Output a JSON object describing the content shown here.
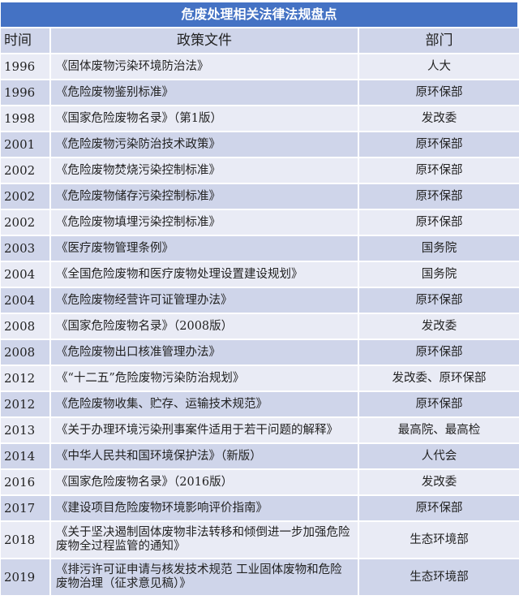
{
  "title": "危废处理相关法律法规盘点",
  "columns": [
    "时间",
    "政策文件",
    "部门"
  ],
  "rows": [
    {
      "year": "1996",
      "doc": "《固体废物污染环境防治法》",
      "dept": "人大"
    },
    {
      "year": "1996",
      "doc": "《危险废物鉴别标准》",
      "dept": "原环保部"
    },
    {
      "year": "1998",
      "doc": "《国家危险废物名录》（第1版）",
      "dept": "发改委"
    },
    {
      "year": "2001",
      "doc": "《危险废物污染防治技术政策》",
      "dept": "原环保部"
    },
    {
      "year": "2002",
      "doc": "《危险废物焚烧污染控制标准》",
      "dept": "原环保部"
    },
    {
      "year": "2002",
      "doc": "《危险废物储存污染控制标准》",
      "dept": "原环保部"
    },
    {
      "year": "2002",
      "doc": "《危险废物填埋污染控制标准》",
      "dept": "原环保部"
    },
    {
      "year": "2003",
      "doc": "《医疗废物管理条例》",
      "dept": "国务院"
    },
    {
      "year": "2004",
      "doc": "《全国危险废物和医疗废物处理设置建设规划》",
      "dept": "国务院"
    },
    {
      "year": "2004",
      "doc": "《危险废物经营许可证管理办法》",
      "dept": "原环保部"
    },
    {
      "year": "2008",
      "doc": "《国家危险废物名录》（2008版）",
      "dept": "发改委"
    },
    {
      "year": "2008",
      "doc": "《危险废物出口核准管理办法》",
      "dept": "原环保部"
    },
    {
      "year": "2012",
      "doc": "《“十二五”危险废物污染防治规划》",
      "dept": "发改委、原环保部"
    },
    {
      "year": "2012",
      "doc": "《危险废物收集、贮存、运输技术规范》",
      "dept": "原环保部"
    },
    {
      "year": "2013",
      "doc": "《关于办理环境污染刑事案件适用于若干问题的解释》",
      "dept": "最高院、最高检"
    },
    {
      "year": "2014",
      "doc": "《中华人民共和国环境保护法》（新版）",
      "dept": "人代会"
    },
    {
      "year": "2016",
      "doc": "《国家危险废物名录》（2016版）",
      "dept": "发改委"
    },
    {
      "year": "2017",
      "doc": "《建设项目危险废物环境影响评价指南》",
      "dept": "原环保部"
    },
    {
      "year": "2018",
      "doc": "《关于坚决遏制固体废物非法转移和倾倒进一步加强危险废物全过程监管的通知》",
      "dept": "生态环境部"
    },
    {
      "year": "2019",
      "doc": "《排污许可证申请与核发技术规范 工业固体废物和危险废物治理（征求意见稿）》",
      "dept": "生态环境部"
    }
  ],
  "colors": {
    "title_bg": "#4472C4",
    "header_bg": "#CFD5EA",
    "row_light": "#E9EBF5",
    "row_dark": "#CFD5EA"
  }
}
